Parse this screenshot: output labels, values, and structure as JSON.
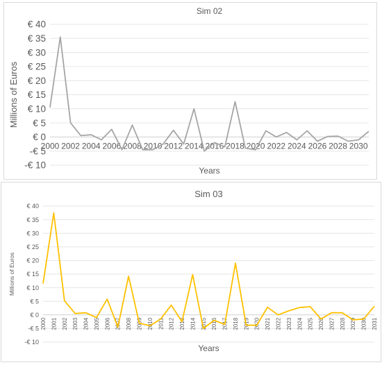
{
  "chart_data": [
    {
      "type": "line",
      "title": "Sim 02",
      "xlabel": "Years",
      "ylabel": "Millions of Euros",
      "ylim": [
        -10,
        40
      ],
      "y_ticks": [
        -10,
        -5,
        0,
        5,
        10,
        15,
        20,
        25,
        30,
        35,
        40
      ],
      "y_tick_prefix": "€ ",
      "x": [
        2000,
        2001,
        2002,
        2003,
        2004,
        2005,
        2006,
        2007,
        2008,
        2009,
        2010,
        2011,
        2012,
        2013,
        2014,
        2015,
        2016,
        2017,
        2018,
        2019,
        2020,
        2021,
        2022,
        2023,
        2024,
        2025,
        2026,
        2027,
        2028,
        2029,
        2030,
        2031
      ],
      "x_tick_labels": [
        "2000",
        "2002",
        "2004",
        "2006",
        "2008",
        "2010",
        "2012",
        "2014",
        "2016",
        "2018",
        "2020",
        "2022",
        "2024",
        "2026",
        "2028",
        "2030"
      ],
      "series": [
        {
          "color": "#a5a5a5",
          "values": [
            10.5,
            35.5,
            5,
            0.5,
            0.8,
            -1,
            2.7,
            -4.5,
            4.2,
            -4.5,
            -4.5,
            -2.5,
            2.4,
            -2.5,
            10,
            -5,
            -2,
            -3.5,
            12.5,
            -4,
            -4.5,
            2.2,
            0,
            1.6,
            -1,
            2.2,
            -1.5,
            0.2,
            0.3,
            -1.5,
            -1,
            2
          ]
        }
      ]
    },
    {
      "type": "line",
      "title": "Sim 03",
      "xlabel": "Years",
      "ylabel": "Millions of Euros",
      "ylim": [
        -10,
        40
      ],
      "y_ticks": [
        -10,
        -5,
        0,
        5,
        10,
        15,
        20,
        25,
        30,
        35,
        40
      ],
      "y_tick_prefix": "€ ",
      "x": [
        2000,
        2001,
        2002,
        2003,
        2004,
        2005,
        2006,
        2007,
        2008,
        2009,
        2010,
        2011,
        2012,
        2013,
        2014,
        2015,
        2016,
        2017,
        2018,
        2019,
        2020,
        2021,
        2022,
        2023,
        2024,
        2025,
        2026,
        2027,
        2028,
        2029,
        2030,
        2031
      ],
      "x_tick_labels": [
        "2000",
        "2001",
        "2002",
        "2003",
        "2004",
        "2005",
        "2006",
        "2007",
        "2008",
        "2009",
        "2010",
        "2011",
        "2012",
        "2013",
        "2014",
        "2015",
        "2016",
        "2017",
        "2018",
        "2019",
        "2020",
        "2021",
        "2022",
        "2023",
        "2024",
        "2025",
        "2026",
        "2027",
        "2028",
        "2029",
        "2030",
        "2031"
      ],
      "series": [
        {
          "color": "#ffc000",
          "values": [
            11.5,
            37.5,
            5.2,
            0.5,
            0.8,
            -1,
            5.8,
            -4.5,
            14.2,
            -3,
            -4,
            -1.5,
            3.6,
            -2.5,
            14.8,
            -5,
            -2,
            -3.5,
            19,
            -3.8,
            -3.8,
            2.8,
            0,
            1.5,
            2.7,
            3,
            -1.5,
            0.8,
            0.8,
            -1.8,
            -1.5,
            3.2
          ]
        }
      ]
    }
  ]
}
